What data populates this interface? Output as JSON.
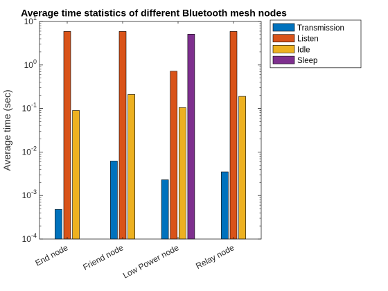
{
  "chart_data": {
    "type": "bar",
    "title": "Average time statistics of different Bluetooth mesh nodes",
    "xlabel": "",
    "ylabel": "Average time (sec)",
    "yscale": "log",
    "ylim": [
      0.0001,
      10
    ],
    "yticks": [
      {
        "base": "10",
        "exp": "-4"
      },
      {
        "base": "10",
        "exp": "-3"
      },
      {
        "base": "10",
        "exp": "-2"
      },
      {
        "base": "10",
        "exp": "-1"
      },
      {
        "base": "10",
        "exp": "0"
      },
      {
        "base": "10",
        "exp": "1"
      }
    ],
    "categories": [
      "End node",
      "Friend node",
      "Low Power node",
      "Relay node"
    ],
    "series": [
      {
        "name": "Transmission",
        "color": "#0072bd",
        "values": [
          0.00048,
          0.0062,
          0.0023,
          0.0035
        ]
      },
      {
        "name": "Listen",
        "color": "#d95319",
        "values": [
          5.9,
          5.9,
          0.72,
          5.9
        ]
      },
      {
        "name": "Idle",
        "color": "#edb120",
        "values": [
          0.09,
          0.21,
          0.105,
          0.19
        ]
      },
      {
        "name": "Sleep",
        "color": "#7e2f8e",
        "values": [
          null,
          null,
          5.1,
          null
        ]
      }
    ],
    "legend_position": "top-right",
    "grid": false
  }
}
